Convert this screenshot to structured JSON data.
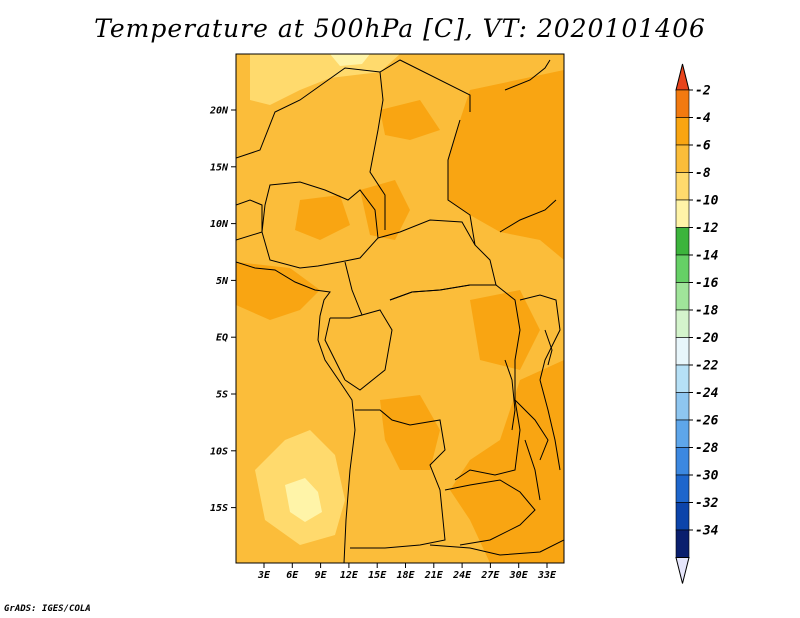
{
  "title": "Temperature at 500hPa [C], VT: 2020101406",
  "credit": "GrADS: IGES/COLA",
  "map": {
    "region": "Central Africa",
    "lat_labels": [
      "20N",
      "15N",
      "10N",
      "5N",
      "EQ",
      "5S",
      "10S",
      "15S"
    ],
    "lon_labels": [
      "3E",
      "6E",
      "9E",
      "12E",
      "15E",
      "18E",
      "21E",
      "24E",
      "27E",
      "30E",
      "33E"
    ],
    "field": "Temperature at 500hPa",
    "units": "C"
  },
  "colorbar": {
    "labels": [
      "-2",
      "-4",
      "-6",
      "-8",
      "-10",
      "-12",
      "-14",
      "-16",
      "-18",
      "-20",
      "-22",
      "-24",
      "-26",
      "-28",
      "-30",
      "-32",
      "-34"
    ],
    "colors": [
      "#e8441c",
      "#f27a10",
      "#f9a512",
      "#fbbd3a",
      "#ffda6d",
      "#fff4a8",
      "#3cb43c",
      "#66d066",
      "#a0e49a",
      "#d4f4cc",
      "#e8f6fb",
      "#b6e0f6",
      "#8ec6f0",
      "#5ea6ea",
      "#3c88e0",
      "#1e66cc",
      "#0c44aa",
      "#0a1f6e",
      "#e6e6fb"
    ]
  },
  "colors": {
    "background": "#fbbd3a",
    "warm": "#f9a512",
    "cool": "#ffda6d",
    "coolest": "#fff4a8"
  }
}
